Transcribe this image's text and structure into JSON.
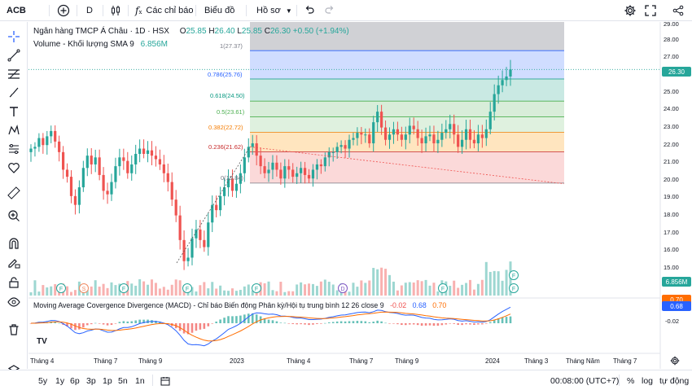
{
  "topbar": {
    "symbol": "ACB",
    "interval": "D",
    "indicators_label": "Các chỉ báo",
    "chart_type_label": "Biểu đồ",
    "profile_label": "Hồ sơ"
  },
  "legend": {
    "title": "Ngân hàng TMCP Á Châu · 1D · HSX",
    "o_label": "O",
    "o_value": "25.85",
    "h_label": "H",
    "h_value": "26.40",
    "l_label": "L",
    "l_value": "25.85",
    "c_label": "C",
    "c_value": "26.30",
    "change": "+0.50 (+1.94%)",
    "volume_label": "Volume - Khối lượng SMA 9",
    "volume_value": "6.856M",
    "macd_label": "Moving Average Covergence Divergence (MACD) - Chỉ báo Biến động Phân kỳ/Hội tụ trung bình 12 26 close 9",
    "macd_hist": "-0.02",
    "macd_line": "0.68",
    "macd_signal": "0.70"
  },
  "fib_levels": [
    {
      "label": "1(27.37)",
      "value": 27.37
    },
    {
      "label": "0.786(25.76)",
      "value": 25.76
    },
    {
      "label": "0.618(24.50)",
      "value": 24.5
    },
    {
      "label": "0.5(23.61)",
      "value": 23.61
    },
    {
      "label": "0.382(22.72)",
      "value": 22.72
    },
    {
      "label": "0.236(21.62)",
      "value": 21.62
    },
    {
      "label": "0(19.84)",
      "value": 19.84
    }
  ],
  "price_axis": {
    "labels": [
      "29.00",
      "28.00",
      "27.00",
      "26.00",
      "25.00",
      "24.00",
      "23.00",
      "22.00",
      "21.00",
      "20.00",
      "19.00",
      "18.00",
      "17.00",
      "16.00",
      "15.00",
      "14.00"
    ],
    "last_price_tag": "26.30",
    "volume_tag": "6.856M",
    "macd_tag_1": "0.70",
    "macd_tag_2": "0.68",
    "macd_tick": "-0.02"
  },
  "time_axis": [
    "Tháng 4",
    "Tháng 7",
    "Tháng 9",
    "2023",
    "Tháng 4",
    "Tháng 7",
    "Tháng 9",
    "2024",
    "Tháng 3",
    "Tháng Năm",
    "Tháng 7"
  ],
  "bottombar": {
    "ranges": [
      "5y",
      "1y",
      "6p",
      "3p",
      "1p",
      "5n",
      "1n"
    ],
    "clock": "00:08:00 (UTC+7)",
    "percent": "%",
    "log": "log",
    "auto": "tự động"
  },
  "markers": {
    "f": "F",
    "s": "S",
    "d": "D"
  },
  "logo": "TV",
  "colors": {
    "up": "#26a69a",
    "down": "#ef5350",
    "accent": "#2962ff"
  },
  "chart_data": {
    "type": "candlestick",
    "title": "Ngân hàng TMCP Á Châu · 1D · HSX",
    "ylim": [
      13.5,
      29.3
    ],
    "last_close": 26.3,
    "closes": [
      21.8,
      21.9,
      22.4,
      22.0,
      22.5,
      22.8,
      22.2,
      21.6,
      20.6,
      20.2,
      19.1,
      18.6,
      19.6,
      20.7,
      21.4,
      20.9,
      21.3,
      20.3,
      19.4,
      19.2,
      19.9,
      20.8,
      21.3,
      21.1,
      20.4,
      20.9,
      21.5,
      21.8,
      21.5,
      21.7,
      21.4,
      21.2,
      20.9,
      20.4,
      19.9,
      18.9,
      18.0,
      16.6,
      15.4,
      15.6,
      16.7,
      17.2,
      16.6,
      16.2,
      17.6,
      18.6,
      18.3,
      19.1,
      19.6,
      20.1,
      19.4,
      19.8,
      20.4,
      21.3,
      21.9,
      22.1,
      21.4,
      20.8,
      20.4,
      20.6,
      21.0,
      20.6,
      20.1,
      20.8,
      20.6,
      20.2,
      20.4,
      20.7,
      20.3,
      20.1,
      20.6,
      20.9,
      20.8,
      21.3,
      21.6,
      21.6,
      21.9,
      22.0,
      21.8,
      22.3,
      22.4,
      22.7,
      22.6,
      22.6,
      22.1,
      23.3,
      23.9,
      23.0,
      22.3,
      22.6,
      22.9,
      22.6,
      22.3,
      22.6,
      23.1,
      22.9,
      22.4,
      22.1,
      22.5,
      22.6,
      22.1,
      22.3,
      22.7,
      22.9,
      23.2,
      22.6,
      21.9,
      22.3,
      22.9,
      22.3,
      22.1,
      22.6,
      22.4,
      22.9,
      23.9,
      24.9,
      25.4,
      25.7,
      25.9,
      26.3
    ]
  }
}
